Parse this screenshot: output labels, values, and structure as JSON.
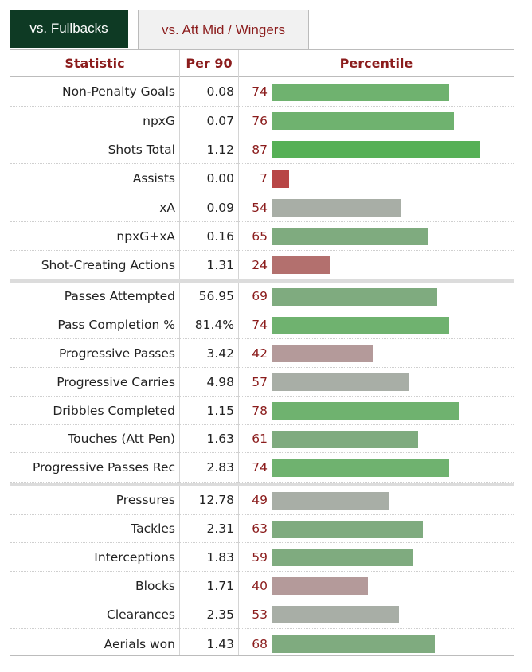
{
  "tabs": [
    {
      "label": "vs. Fullbacks",
      "active": true
    },
    {
      "label": "vs. Att Mid / Wingers",
      "active": false
    }
  ],
  "colors": {
    "tab_active_bg": "#0e3a24",
    "header_text": "#8b1c1c",
    "bar_green_high": "#56b056",
    "bar_green": "#6fb26f",
    "bar_green_mid": "#7fab7f",
    "bar_gray": "#a8aea6",
    "bar_pinkgray": "#b49a9a",
    "bar_red_mid": "#b3706e",
    "bar_red": "#b84646"
  },
  "chart_data": {
    "type": "table",
    "columns": [
      "Statistic",
      "Per 90",
      "Percentile"
    ],
    "xlim": [
      0,
      100
    ],
    "groups": [
      [
        {
          "stat": "Non-Penalty Goals",
          "per90": "0.08",
          "pct": 74
        },
        {
          "stat": "npxG",
          "per90": "0.07",
          "pct": 76
        },
        {
          "stat": "Shots Total",
          "per90": "1.12",
          "pct": 87
        },
        {
          "stat": "Assists",
          "per90": "0.00",
          "pct": 7
        },
        {
          "stat": "xA",
          "per90": "0.09",
          "pct": 54
        },
        {
          "stat": "npxG+xA",
          "per90": "0.16",
          "pct": 65
        },
        {
          "stat": "Shot-Creating Actions",
          "per90": "1.31",
          "pct": 24
        }
      ],
      [
        {
          "stat": "Passes Attempted",
          "per90": "56.95",
          "pct": 69
        },
        {
          "stat": "Pass Completion %",
          "per90": "81.4%",
          "pct": 74
        },
        {
          "stat": "Progressive Passes",
          "per90": "3.42",
          "pct": 42
        },
        {
          "stat": "Progressive Carries",
          "per90": "4.98",
          "pct": 57
        },
        {
          "stat": "Dribbles Completed",
          "per90": "1.15",
          "pct": 78
        },
        {
          "stat": "Touches (Att Pen)",
          "per90": "1.63",
          "pct": 61
        },
        {
          "stat": "Progressive Passes Rec",
          "per90": "2.83",
          "pct": 74
        }
      ],
      [
        {
          "stat": "Pressures",
          "per90": "12.78",
          "pct": 49
        },
        {
          "stat": "Tackles",
          "per90": "2.31",
          "pct": 63
        },
        {
          "stat": "Interceptions",
          "per90": "1.83",
          "pct": 59
        },
        {
          "stat": "Blocks",
          "per90": "1.71",
          "pct": 40
        },
        {
          "stat": "Clearances",
          "per90": "2.35",
          "pct": 53
        },
        {
          "stat": "Aerials won",
          "per90": "1.43",
          "pct": 68
        }
      ]
    ]
  }
}
